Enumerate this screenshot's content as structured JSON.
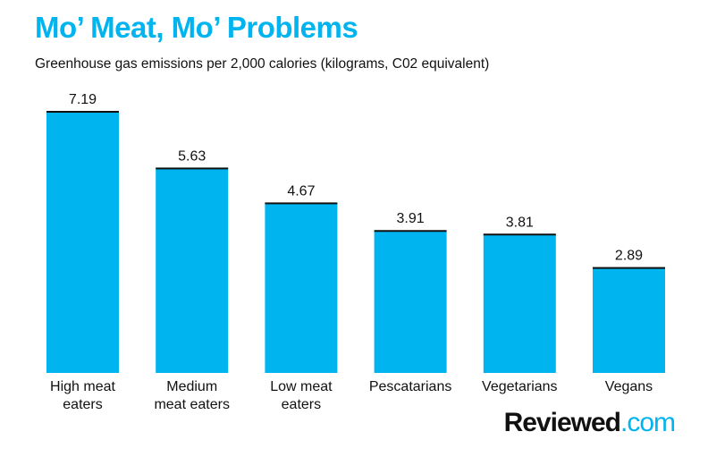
{
  "colors": {
    "accent": "#00b4f0",
    "bar": "#00b4f0",
    "bar_cap": "#111111",
    "text": "#111111"
  },
  "chart_data": {
    "type": "bar",
    "title": "Mo’ Meat, Mo’ Problems",
    "subtitle": "Greenhouse gas emissions per 2,000 calories (kilograms, C02 equivalent)",
    "xlabel": "",
    "ylabel": "",
    "categories": [
      [
        "High meat",
        "eaters"
      ],
      [
        "Medium",
        "meat eaters"
      ],
      [
        "Low meat",
        "eaters"
      ],
      [
        "Pescatarians"
      ],
      [
        "Vegetarians"
      ],
      [
        "Vegans"
      ]
    ],
    "values": [
      7.19,
      5.63,
      4.67,
      3.91,
      3.81,
      2.89
    ],
    "value_labels": [
      "7.19",
      "5.63",
      "4.67",
      "3.91",
      "3.81",
      "2.89"
    ],
    "ylim": [
      0,
      7.19
    ],
    "grid": false,
    "legend": "none"
  },
  "brand": {
    "name": "Reviewed",
    "tld": ".com"
  }
}
